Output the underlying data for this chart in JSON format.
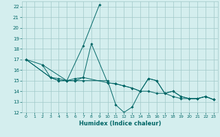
{
  "xlabel": "Humidex (Indice chaleur)",
  "xlim": [
    -0.5,
    23.5
  ],
  "ylim": [
    12,
    22.5
  ],
  "yticks": [
    12,
    13,
    14,
    15,
    16,
    17,
    18,
    19,
    20,
    21,
    22
  ],
  "xticks": [
    0,
    1,
    2,
    3,
    4,
    5,
    6,
    7,
    8,
    9,
    10,
    11,
    12,
    13,
    14,
    15,
    16,
    17,
    18,
    19,
    20,
    21,
    22,
    23
  ],
  "bg_color": "#d4eeee",
  "line_color": "#006666",
  "grid_color": "#a0c8c8",
  "series": [
    {
      "x": [
        0,
        2,
        5,
        7,
        9
      ],
      "y": [
        17.0,
        16.5,
        15.0,
        18.3,
        22.2
      ]
    },
    {
      "x": [
        0,
        3,
        4,
        5,
        6,
        7,
        8,
        10,
        11,
        12,
        13,
        14,
        15,
        16,
        17,
        18,
        19,
        20,
        21,
        22,
        23
      ],
      "y": [
        17.0,
        15.3,
        15.2,
        15.0,
        15.2,
        15.3,
        18.5,
        14.8,
        14.7,
        14.5,
        14.3,
        14.0,
        15.2,
        15.0,
        13.8,
        14.0,
        13.5,
        13.3,
        13.3,
        13.5,
        13.2
      ]
    },
    {
      "x": [
        0,
        3,
        4,
        5,
        6,
        7,
        10,
        11,
        12,
        13,
        14,
        15,
        16,
        17,
        18,
        19,
        20,
        21,
        22,
        23
      ],
      "y": [
        17.0,
        15.3,
        15.0,
        15.0,
        15.0,
        15.0,
        15.0,
        12.7,
        12.0,
        12.5,
        14.0,
        15.2,
        15.0,
        13.8,
        14.0,
        13.5,
        13.3,
        13.3,
        13.5,
        13.2
      ]
    },
    {
      "x": [
        2,
        3,
        4,
        5,
        6,
        7,
        10,
        11,
        12,
        13,
        14,
        15,
        16,
        17,
        18,
        19,
        20,
        21,
        22,
        23
      ],
      "y": [
        16.5,
        15.3,
        15.0,
        15.0,
        15.0,
        15.3,
        14.8,
        14.7,
        14.5,
        14.3,
        14.0,
        14.0,
        13.8,
        13.8,
        13.5,
        13.3,
        13.3,
        13.3,
        13.5,
        13.2
      ]
    }
  ]
}
